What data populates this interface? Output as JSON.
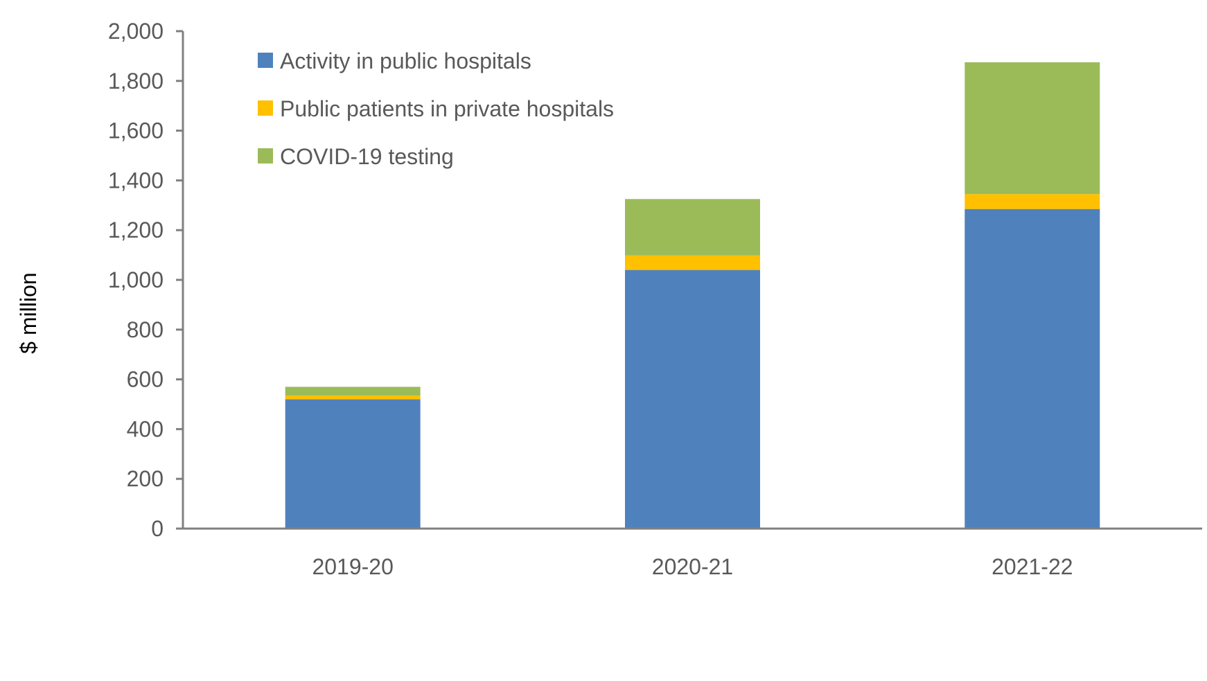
{
  "chart_data": {
    "type": "bar",
    "stacked": true,
    "categories": [
      "2019-20",
      "2020-21",
      "2021-22"
    ],
    "series": [
      {
        "name": "Activity in public hospitals",
        "values": [
          520,
          1040,
          1285
        ],
        "color": "#4F81BD"
      },
      {
        "name": "Public patients in private hospitals",
        "values": [
          15,
          58,
          60
        ],
        "color": "#FFC000"
      },
      {
        "name": "COVID-19 testing",
        "values": [
          35,
          227,
          530
        ],
        "color": "#9BBB59"
      }
    ],
    "title": "",
    "xlabel": "",
    "ylabel": "$ million",
    "ylim": [
      0,
      2000
    ],
    "yticks": [
      0,
      200,
      400,
      600,
      800,
      1000,
      1200,
      1400,
      1600,
      1800,
      2000
    ],
    "ytick_labels": [
      "0",
      "200",
      "400",
      "600",
      "800",
      "1,000",
      "1,200",
      "1,400",
      "1,600",
      "1,800",
      "2,000"
    ],
    "grid": false,
    "legend_position": "top-left inside plot",
    "axis_color": "#808080"
  }
}
